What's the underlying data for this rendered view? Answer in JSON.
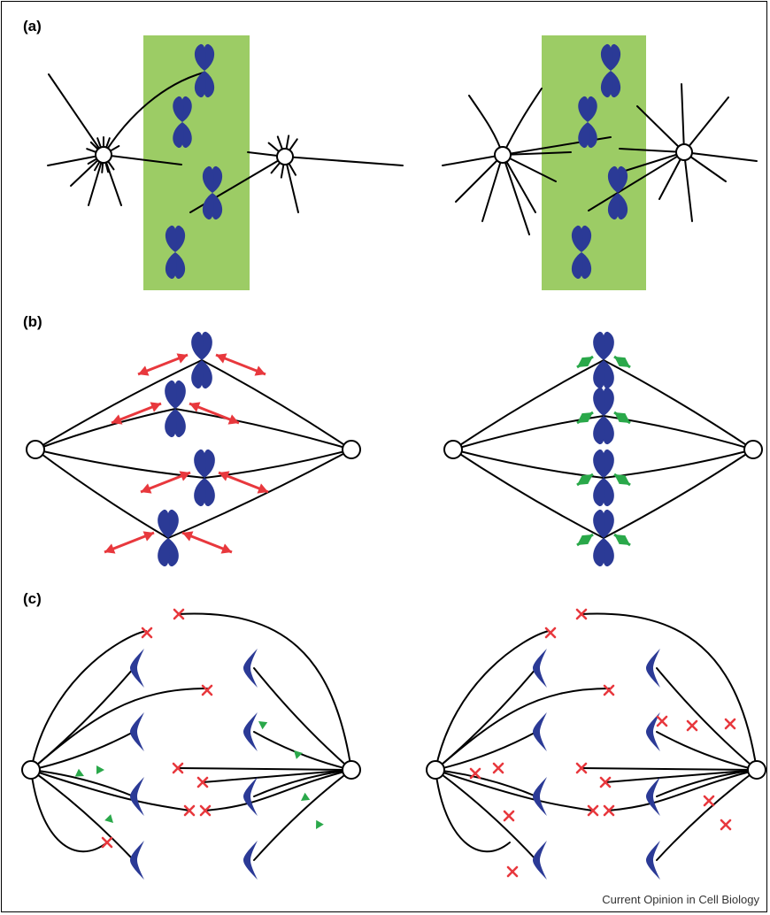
{
  "panels": [
    {
      "label": "(a)"
    },
    {
      "label": "(b)"
    },
    {
      "label": "(c)"
    }
  ],
  "credit": "Current Opinion in Cell Biology",
  "colors": {
    "background": "#ffffff",
    "line": "#000000",
    "chromosome": "#2b3a96",
    "metaphase_plate": "#9ccc65",
    "tension_arrow_red": "#e8383d",
    "tension_arrow_green": "#2aa84a",
    "release_marker": "#e8383d",
    "growth_arrow": "#2aa84a"
  },
  "icons": {
    "pole": "white-circle-centrosome",
    "chromosome": "x-shaped-chromosome",
    "chromatid": "chevron-shaped-chromatid",
    "release": "red-cross-marker",
    "growth": "green-arrowhead"
  }
}
